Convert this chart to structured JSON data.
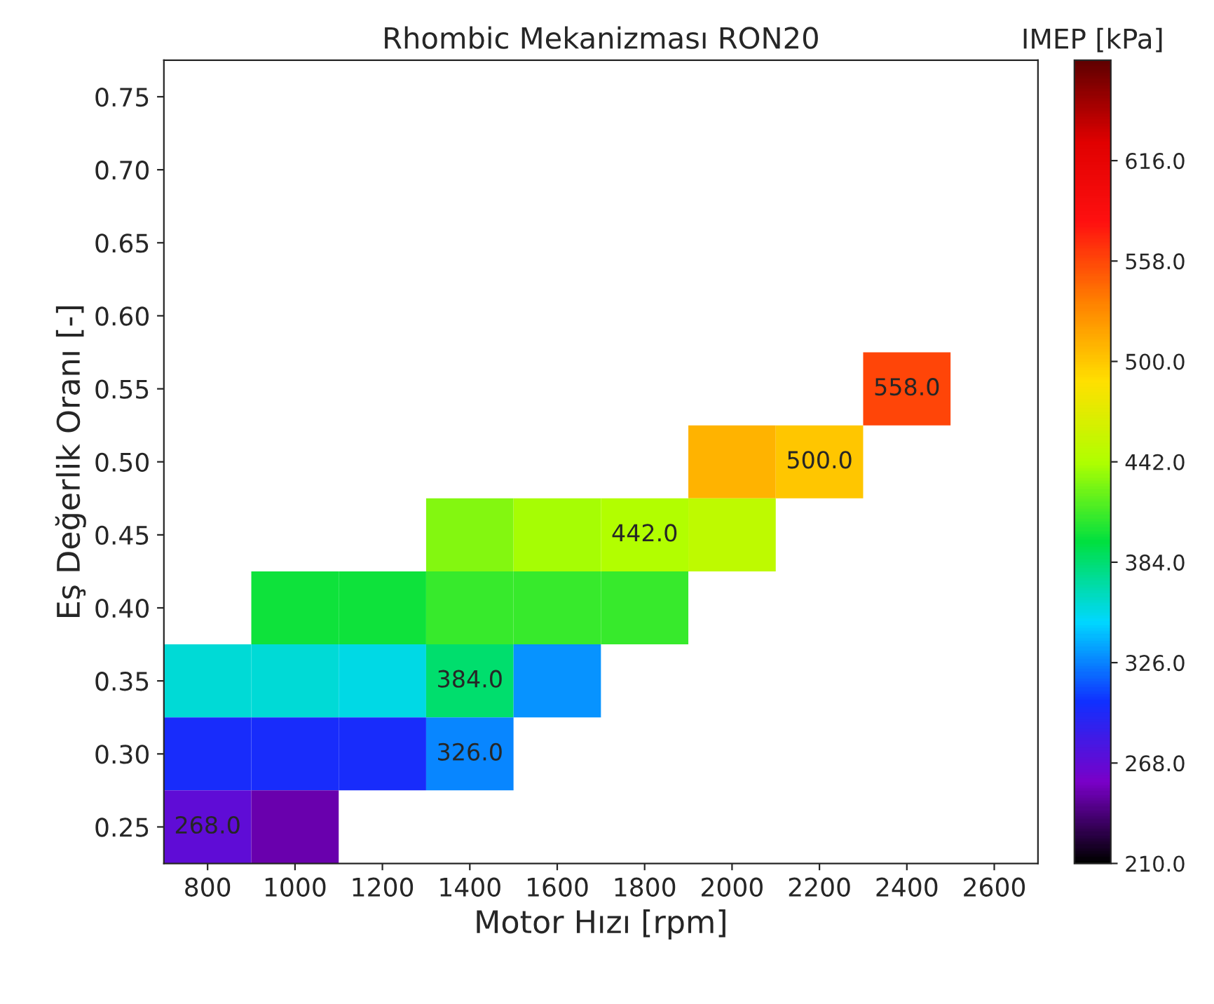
{
  "chart_data": {
    "type": "heatmap",
    "title": "Rhombic Mekanizması RON20",
    "xlabel": "Motor Hızı [rpm]",
    "ylabel": "Eş Değerlik Oranı [-]",
    "clabel": "IMEP [kPa]",
    "categories": [
      "800",
      "1000",
      "1200",
      "1400",
      "1600",
      "1800",
      "2000",
      "2200",
      "2400",
      "2600"
    ],
    "y_categories": [
      "0.75",
      "0.70",
      "0.65",
      "0.60",
      "0.55",
      "0.50",
      "0.45",
      "0.40",
      "0.35",
      "0.30",
      "0.25"
    ],
    "cells": [
      [
        null,
        null,
        null,
        null,
        null,
        null,
        null,
        null,
        null,
        null
      ],
      [
        null,
        null,
        null,
        null,
        null,
        null,
        null,
        null,
        null,
        null
      ],
      [
        null,
        null,
        null,
        null,
        null,
        null,
        null,
        null,
        null,
        null
      ],
      [
        null,
        null,
        null,
        null,
        null,
        null,
        null,
        null,
        null,
        null
      ],
      [
        null,
        null,
        null,
        null,
        null,
        null,
        null,
        null,
        558,
        null
      ],
      [
        null,
        null,
        null,
        null,
        null,
        null,
        510,
        500,
        null,
        null
      ],
      [
        null,
        null,
        null,
        430,
        440,
        442,
        450,
        null,
        null,
        null
      ],
      [
        null,
        400,
        400,
        410,
        410,
        410,
        null,
        null,
        null,
        null
      ],
      [
        360,
        360,
        355,
        384,
        330,
        null,
        null,
        null,
        null,
        null
      ],
      [
        300,
        300,
        300,
        326,
        null,
        null,
        null,
        null,
        null,
        null
      ],
      [
        268,
        250,
        null,
        null,
        null,
        null,
        null,
        null,
        null,
        null
      ]
    ],
    "cell_labels": [
      [
        null,
        null,
        null,
        null,
        null,
        null,
        null,
        null,
        null,
        null
      ],
      [
        null,
        null,
        null,
        null,
        null,
        null,
        null,
        null,
        null,
        null
      ],
      [
        null,
        null,
        null,
        null,
        null,
        null,
        null,
        null,
        null,
        null
      ],
      [
        null,
        null,
        null,
        null,
        null,
        null,
        null,
        null,
        null,
        null
      ],
      [
        null,
        null,
        null,
        null,
        null,
        null,
        null,
        null,
        "558.0",
        null
      ],
      [
        null,
        null,
        null,
        null,
        null,
        null,
        null,
        "500.0",
        null,
        null
      ],
      [
        null,
        null,
        null,
        null,
        null,
        "442.0",
        null,
        null,
        null,
        null
      ],
      [
        null,
        null,
        null,
        null,
        null,
        null,
        null,
        null,
        null,
        null
      ],
      [
        null,
        null,
        null,
        "384.0",
        null,
        null,
        null,
        null,
        null,
        null
      ],
      [
        null,
        null,
        null,
        "326.0",
        null,
        null,
        null,
        null,
        null,
        null
      ],
      [
        "268.0",
        null,
        null,
        null,
        null,
        null,
        null,
        null,
        null,
        null
      ]
    ],
    "clim": [
      210,
      674
    ],
    "cticks": [
      {
        "value": 210,
        "label": "210.0"
      },
      {
        "value": 268,
        "label": "268.0"
      },
      {
        "value": 326,
        "label": "326.0"
      },
      {
        "value": 384,
        "label": "384.0"
      },
      {
        "value": 442,
        "label": "442.0"
      },
      {
        "value": 500,
        "label": "500.0"
      },
      {
        "value": 558,
        "label": "558.0"
      },
      {
        "value": 616,
        "label": "616.0"
      }
    ]
  }
}
